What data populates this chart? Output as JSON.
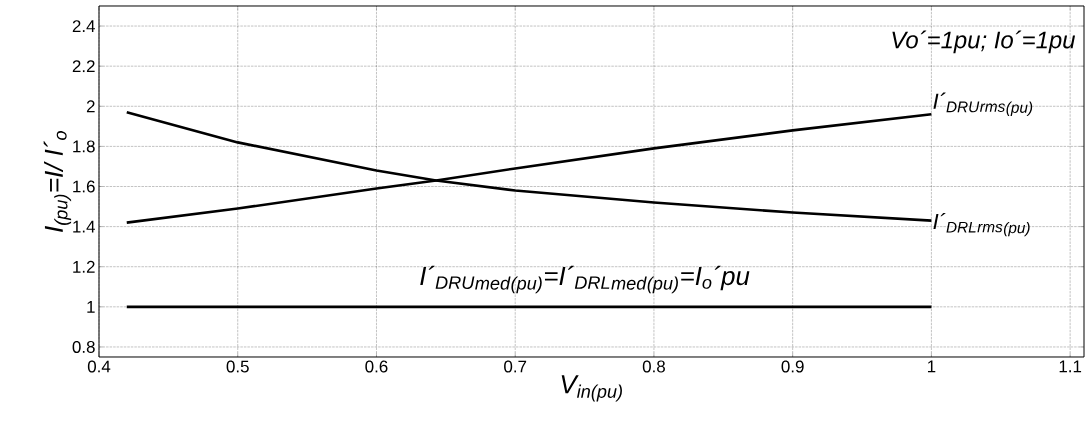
{
  "chart_data": {
    "type": "line",
    "xlabel": "V$_{in(pu)}$",
    "ylabel": "I$_{(pu)}$=I/ I´$_{o}$",
    "x": [
      0.42,
      0.5,
      0.55,
      0.6,
      0.643,
      0.7,
      0.8,
      0.9,
      1.0
    ],
    "series": [
      {
        "name": "I´$_{DRU}$$_{rms}$$_{(pu)}$",
        "color": "#000000",
        "values": [
          1.42,
          1.49,
          1.54,
          1.59,
          1.63,
          1.69,
          1.79,
          1.88,
          1.96
        ]
      },
      {
        "name": "I´$_{DRL}$$_{rms}$$_{(pu)}$",
        "color": "#000000",
        "values": [
          1.97,
          1.82,
          1.75,
          1.68,
          1.63,
          1.58,
          1.52,
          1.47,
          1.43
        ]
      },
      {
        "name": "I´$_{DRU}$$_{med}$$_{(pu)}$=I´$_{DRL}$$_{med}$$_{(pu)}$=I$_{o}$´pu",
        "color": "#000000",
        "values": [
          1,
          1,
          1,
          1,
          1,
          1,
          1,
          1,
          1
        ]
      }
    ],
    "annotations": [
      "Vo´=1pu; Io´=1pu"
    ],
    "xlim": [
      0.4,
      1.11
    ],
    "ylim": [
      0.75,
      2.5
    ],
    "xticks": [
      0.4,
      0.5,
      0.6,
      0.7,
      0.8,
      0.9,
      1,
      1.1
    ],
    "yticks": [
      0.8,
      1,
      1.2,
      1.4,
      1.6,
      1.8,
      2,
      2.2,
      2.4
    ],
    "grid": true,
    "legend": "right",
    "marker": "none",
    "line_style": "solid"
  }
}
